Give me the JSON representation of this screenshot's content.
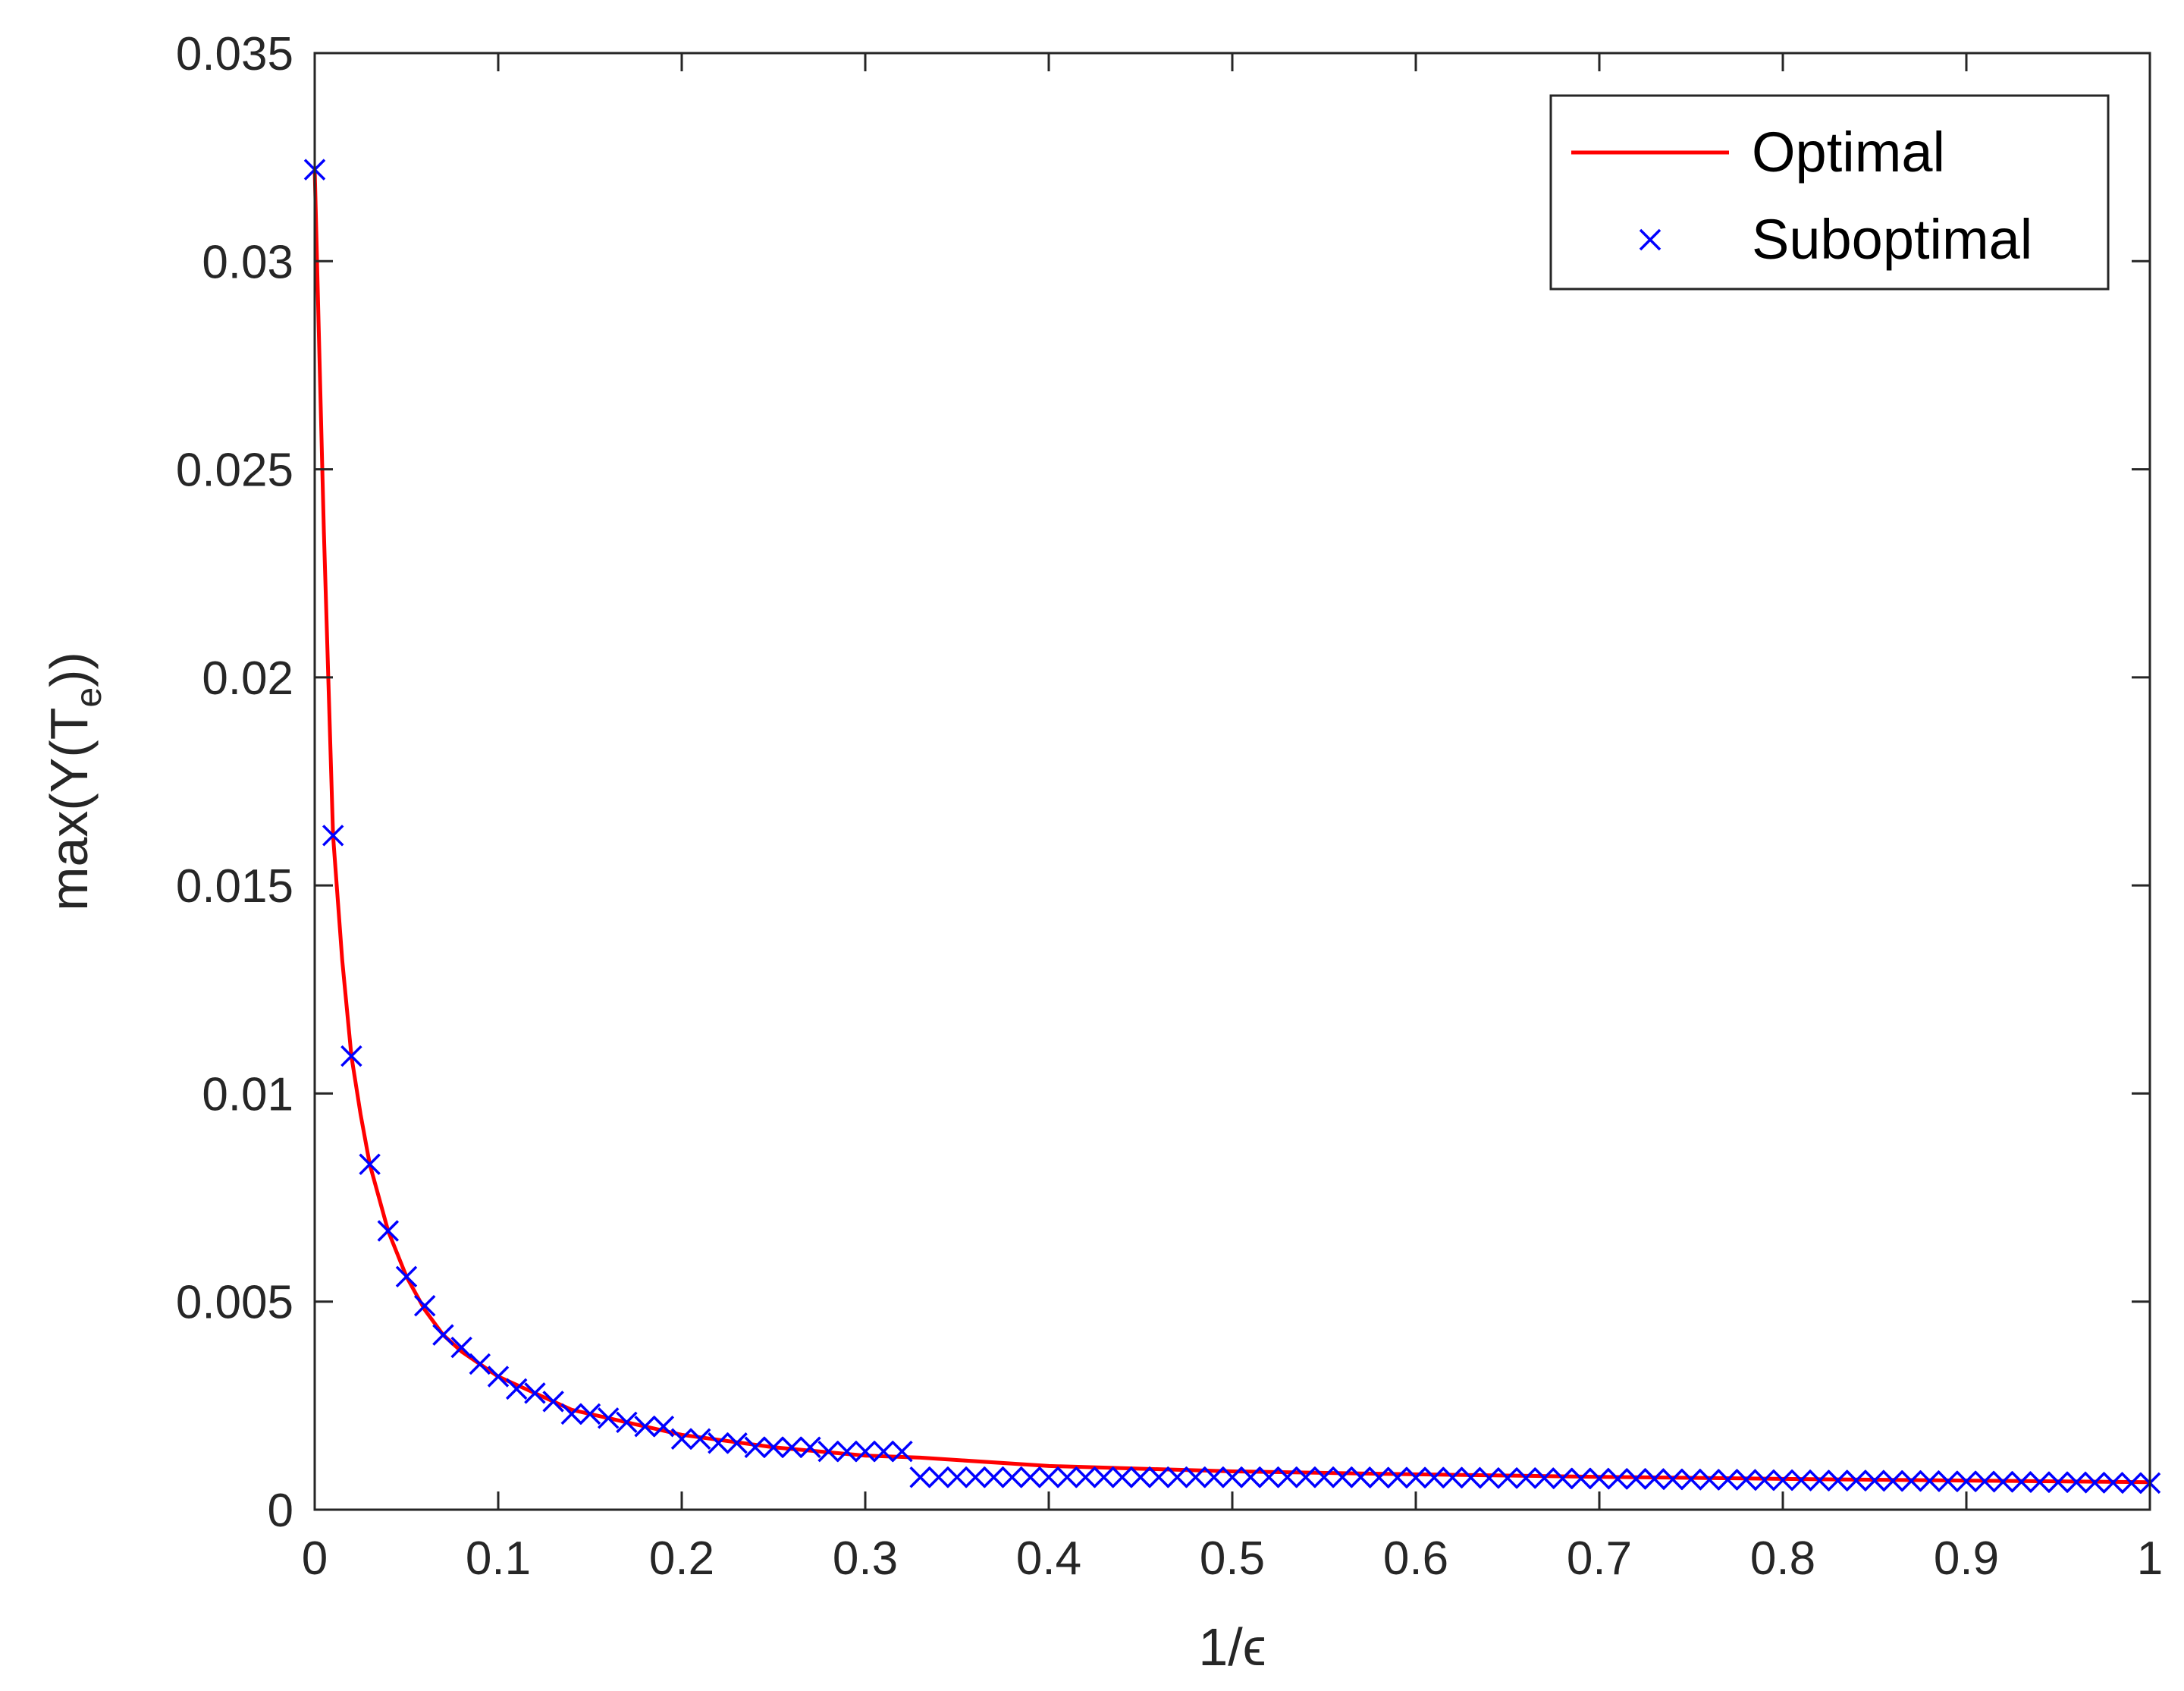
{
  "chart_data": {
    "type": "line",
    "title": "",
    "xlabel": "1/ϵ",
    "ylabel_main": "max(Y(T",
    "ylabel_sub": "e",
    "ylabel_close": "))",
    "xlim": [
      0,
      1
    ],
    "ylim": [
      0,
      0.035
    ],
    "x_ticks": [
      0,
      0.1,
      0.2,
      0.3,
      0.4,
      0.5,
      0.6,
      0.7,
      0.8,
      0.9,
      1
    ],
    "x_tick_labels": [
      "0",
      "0.1",
      "0.2",
      "0.3",
      "0.4",
      "0.5",
      "0.6",
      "0.7",
      "0.8",
      "0.9",
      "1"
    ],
    "y_ticks": [
      0,
      0.005,
      0.01,
      0.015,
      0.02,
      0.025,
      0.03,
      0.035
    ],
    "y_tick_labels": [
      "0",
      "0.005",
      "0.01",
      "0.015",
      "0.02",
      "0.025",
      "0.03",
      "0.035"
    ],
    "grid": false,
    "box": true,
    "legend_position": "top-right",
    "series": [
      {
        "name": "Optimal",
        "style": "line",
        "color": "#ff0000",
        "x": [
          0,
          0.005,
          0.01,
          0.015,
          0.02,
          0.025,
          0.03,
          0.035,
          0.04,
          0.05,
          0.06,
          0.07,
          0.08,
          0.09,
          0.1,
          0.12,
          0.14,
          0.16,
          0.18,
          0.2,
          0.25,
          0.3,
          0.33,
          0.4,
          0.5,
          0.6,
          0.7,
          0.8,
          0.9,
          1.0
        ],
        "y": [
          0.0322,
          0.0235,
          0.0162,
          0.0132,
          0.0109,
          0.0095,
          0.0083,
          0.0075,
          0.0067,
          0.0056,
          0.0048,
          0.0042,
          0.0038,
          0.0035,
          0.0032,
          0.0028,
          0.0024,
          0.0022,
          0.002,
          0.0018,
          0.0015,
          0.0013,
          0.00125,
          0.00105,
          0.00092,
          0.00085,
          0.00079,
          0.00074,
          0.0007,
          0.00066
        ]
      },
      {
        "name": "Suboptimal",
        "style": "markers",
        "marker": "x",
        "color": "#0000ff",
        "x": [
          0,
          0.01,
          0.02,
          0.03,
          0.04,
          0.05,
          0.06,
          0.07,
          0.08,
          0.09,
          0.1,
          0.11,
          0.12,
          0.13,
          0.14,
          0.15,
          0.16,
          0.17,
          0.18,
          0.19,
          0.2,
          0.21,
          0.22,
          0.23,
          0.24,
          0.25,
          0.26,
          0.27,
          0.28,
          0.29,
          0.3,
          0.31,
          0.32,
          0.33,
          0.34,
          0.35,
          0.36,
          0.37,
          0.38,
          0.39,
          0.4,
          0.41,
          0.42,
          0.43,
          0.44,
          0.45,
          0.46,
          0.47,
          0.48,
          0.49,
          0.5,
          0.51,
          0.52,
          0.53,
          0.54,
          0.55,
          0.56,
          0.57,
          0.58,
          0.59,
          0.6,
          0.61,
          0.62,
          0.63,
          0.64,
          0.65,
          0.66,
          0.67,
          0.68,
          0.69,
          0.7,
          0.71,
          0.72,
          0.73,
          0.74,
          0.75,
          0.76,
          0.77,
          0.78,
          0.79,
          0.8,
          0.81,
          0.82,
          0.83,
          0.84,
          0.85,
          0.86,
          0.87,
          0.88,
          0.89,
          0.9,
          0.91,
          0.92,
          0.93,
          0.94,
          0.95,
          0.96,
          0.97,
          0.98,
          0.99,
          1.0
        ],
        "y": [
          0.0322,
          0.0162,
          0.0109,
          0.0083,
          0.0067,
          0.0056,
          0.0049,
          0.0042,
          0.0039,
          0.0035,
          0.0032,
          0.0029,
          0.0028,
          0.0026,
          0.0023,
          0.0023,
          0.0022,
          0.0021,
          0.002,
          0.002,
          0.0017,
          0.0017,
          0.0016,
          0.0016,
          0.0015,
          0.0015,
          0.0015,
          0.0015,
          0.0014,
          0.0014,
          0.0014,
          0.0014,
          0.0014,
          0.00078,
          0.00078,
          0.00078,
          0.00078,
          0.00078,
          0.00078,
          0.00078,
          0.00078,
          0.00078,
          0.00078,
          0.00078,
          0.00078,
          0.00078,
          0.00078,
          0.00078,
          0.00078,
          0.00078,
          0.00078,
          0.00078,
          0.00078,
          0.00078,
          0.00078,
          0.00078,
          0.00078,
          0.00078,
          0.00077,
          0.00077,
          0.00077,
          0.00077,
          0.00077,
          0.00077,
          0.00076,
          0.00076,
          0.00076,
          0.00076,
          0.00075,
          0.00075,
          0.00075,
          0.00074,
          0.00074,
          0.00074,
          0.00073,
          0.00073,
          0.00072,
          0.00072,
          0.00072,
          0.00071,
          0.00071,
          0.00071,
          0.0007,
          0.0007,
          0.0007,
          0.0007,
          0.00069,
          0.00069,
          0.00069,
          0.00068,
          0.00068,
          0.00068,
          0.00067,
          0.00067,
          0.00066,
          0.00066,
          0.00066,
          0.00065,
          0.00065,
          0.00064,
          0.00064
        ]
      }
    ]
  }
}
